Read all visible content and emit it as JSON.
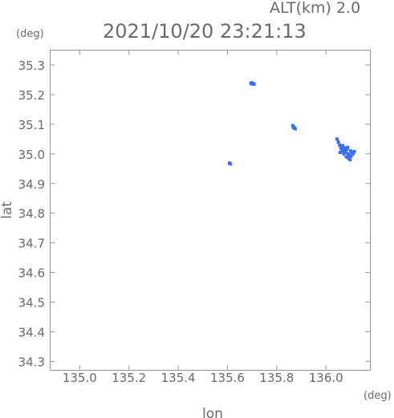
{
  "header": {
    "altitude": "ALT(km) 2.0",
    "datetime": "2021/10/20 23:21:13",
    "y_unit": "(deg)",
    "x_unit": "(deg)"
  },
  "chart_data": {
    "type": "scatter",
    "xlabel": "lon",
    "ylabel": "lat",
    "xlim": [
      134.88,
      136.18
    ],
    "ylim": [
      34.27,
      35.35
    ],
    "xticks": [
      135.0,
      135.2,
      135.4,
      135.6,
      135.8,
      136.0
    ],
    "yticks": [
      34.3,
      34.4,
      34.5,
      34.6,
      34.7,
      34.8,
      34.9,
      35.0,
      35.1,
      35.2,
      35.3
    ],
    "xtick_labels": [
      "135.0",
      "135.2",
      "135.4",
      "135.6",
      "135.8",
      "136.0"
    ],
    "ytick_labels": [
      "34.3",
      "34.4",
      "34.5",
      "34.6",
      "34.7",
      "34.8",
      "34.9",
      "35.0",
      "35.1",
      "35.2",
      "35.3"
    ],
    "grid": false,
    "series": [
      {
        "color": "#3a6ff0",
        "points": [
          [
            135.695,
            35.238
          ],
          [
            135.7,
            35.236
          ],
          [
            135.705,
            35.237
          ],
          [
            135.698,
            35.24
          ],
          [
            135.708,
            35.235
          ],
          [
            135.865,
            35.095
          ],
          [
            135.87,
            35.09
          ],
          [
            135.875,
            35.085
          ],
          [
            135.868,
            35.088
          ],
          [
            135.612,
            34.966
          ],
          [
            135.608,
            34.969
          ],
          [
            136.045,
            35.05
          ],
          [
            136.05,
            35.04
          ],
          [
            136.055,
            35.03
          ],
          [
            136.06,
            35.02
          ],
          [
            136.065,
            35.015
          ],
          [
            136.07,
            35.01
          ],
          [
            136.075,
            35.02
          ],
          [
            136.08,
            35.005
          ],
          [
            136.085,
            35.015
          ],
          [
            136.09,
            35.0
          ],
          [
            136.095,
            34.995
          ],
          [
            136.1,
            35.01
          ],
          [
            136.105,
            35.005
          ],
          [
            136.11,
            35.0
          ],
          [
            136.115,
            35.008
          ],
          [
            136.062,
            35.025
          ],
          [
            136.072,
            35.0
          ],
          [
            136.082,
            34.99
          ],
          [
            136.092,
            34.985
          ],
          [
            136.098,
            34.98
          ],
          [
            136.058,
            35.005
          ],
          [
            136.068,
            35.028
          ],
          [
            136.088,
            35.022
          ],
          [
            136.102,
            34.992
          ],
          [
            136.078,
            35.012
          ]
        ]
      }
    ]
  }
}
